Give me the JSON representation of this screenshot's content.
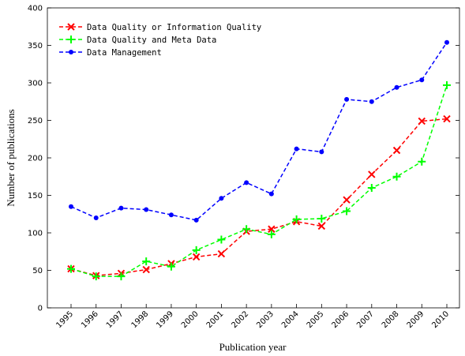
{
  "chart_data": {
    "type": "line",
    "x_label": "Publication year",
    "y_label": "Number of publications",
    "categories": [
      "1995",
      "1996",
      "1997",
      "1998",
      "1999",
      "2000",
      "2001",
      "2002",
      "2003",
      "2004",
      "2005",
      "2006",
      "2007",
      "2008",
      "2009",
      "2010"
    ],
    "series": [
      {
        "name": "Data Quality or Information Quality",
        "color": "#ff0000",
        "marker": "x",
        "values": [
          52,
          43,
          46,
          51,
          59,
          68,
          72,
          102,
          105,
          115,
          109,
          144,
          178,
          210,
          249,
          252
        ]
      },
      {
        "name": "Data Quality and Meta Data",
        "color": "#00ff00",
        "marker": "+",
        "values": [
          52,
          42,
          42,
          62,
          55,
          77,
          91,
          105,
          98,
          118,
          119,
          129,
          160,
          175,
          195,
          297
        ]
      },
      {
        "name": "Data Management",
        "color": "#0000ff",
        "marker": "o",
        "values": [
          135,
          120,
          133,
          131,
          124,
          117,
          146,
          167,
          152,
          212,
          208,
          278,
          275,
          294,
          304,
          354
        ]
      }
    ],
    "ylim": [
      0,
      400
    ],
    "yticks": [
      0,
      50,
      100,
      150,
      200,
      250,
      300,
      350,
      400
    ],
    "legend": "upper left",
    "grid": false
  }
}
